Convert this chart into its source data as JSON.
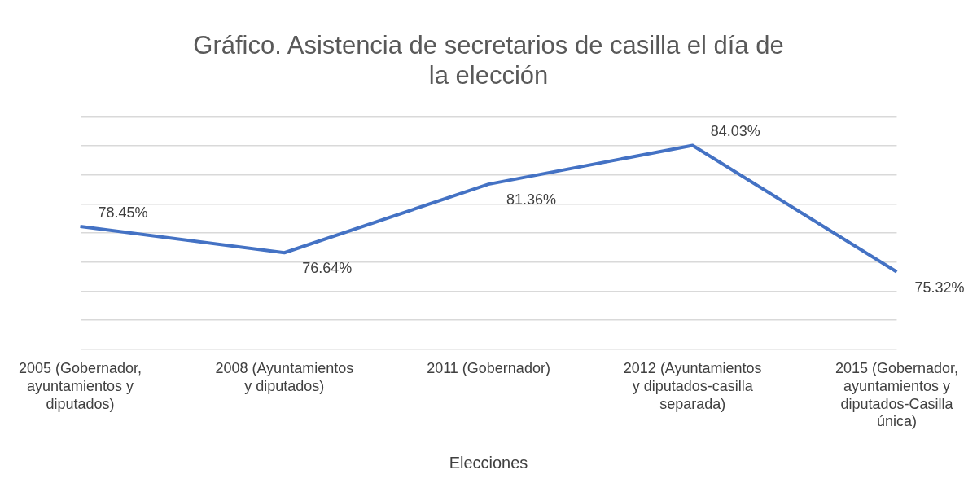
{
  "chart_data": {
    "type": "line",
    "title": "Gráfico. Asistencia de secretarios de casilla el día de la elección",
    "xlabel": "Elecciones",
    "categories": [
      "2005 (Gobernador, ayuntamientos y diputados)",
      "2008 (Ayuntamientos y diputados)",
      "2011 (Gobernador)",
      "2012 (Ayuntamientos y diputados-casilla separada)",
      "2015 (Gobernador, ayuntamientos y diputados-Casilla única)"
    ],
    "series": [
      {
        "color": "#4472c4",
        "values": [
          78.45,
          76.64,
          81.36,
          84.03,
          75.32
        ],
        "value_labels": [
          "78.45%",
          "76.64%",
          "81.36%",
          "84.03%",
          "75.32%"
        ]
      }
    ],
    "ylim": [
      70,
      86
    ],
    "yticks": [
      {
        "value": 70,
        "label": null
      },
      {
        "value": 72,
        "label": null
      },
      {
        "value": 74,
        "label": null
      },
      {
        "value": 76,
        "label": null
      },
      {
        "value": 78,
        "label": null
      },
      {
        "value": 80,
        "label": null
      },
      {
        "value": 82,
        "label": null
      },
      {
        "value": 84,
        "label": null
      },
      {
        "value": 86,
        "label": null
      }
    ],
    "tick_labels": "x",
    "grid": "y",
    "legend": false,
    "marker": "none",
    "line_style": "solid"
  }
}
